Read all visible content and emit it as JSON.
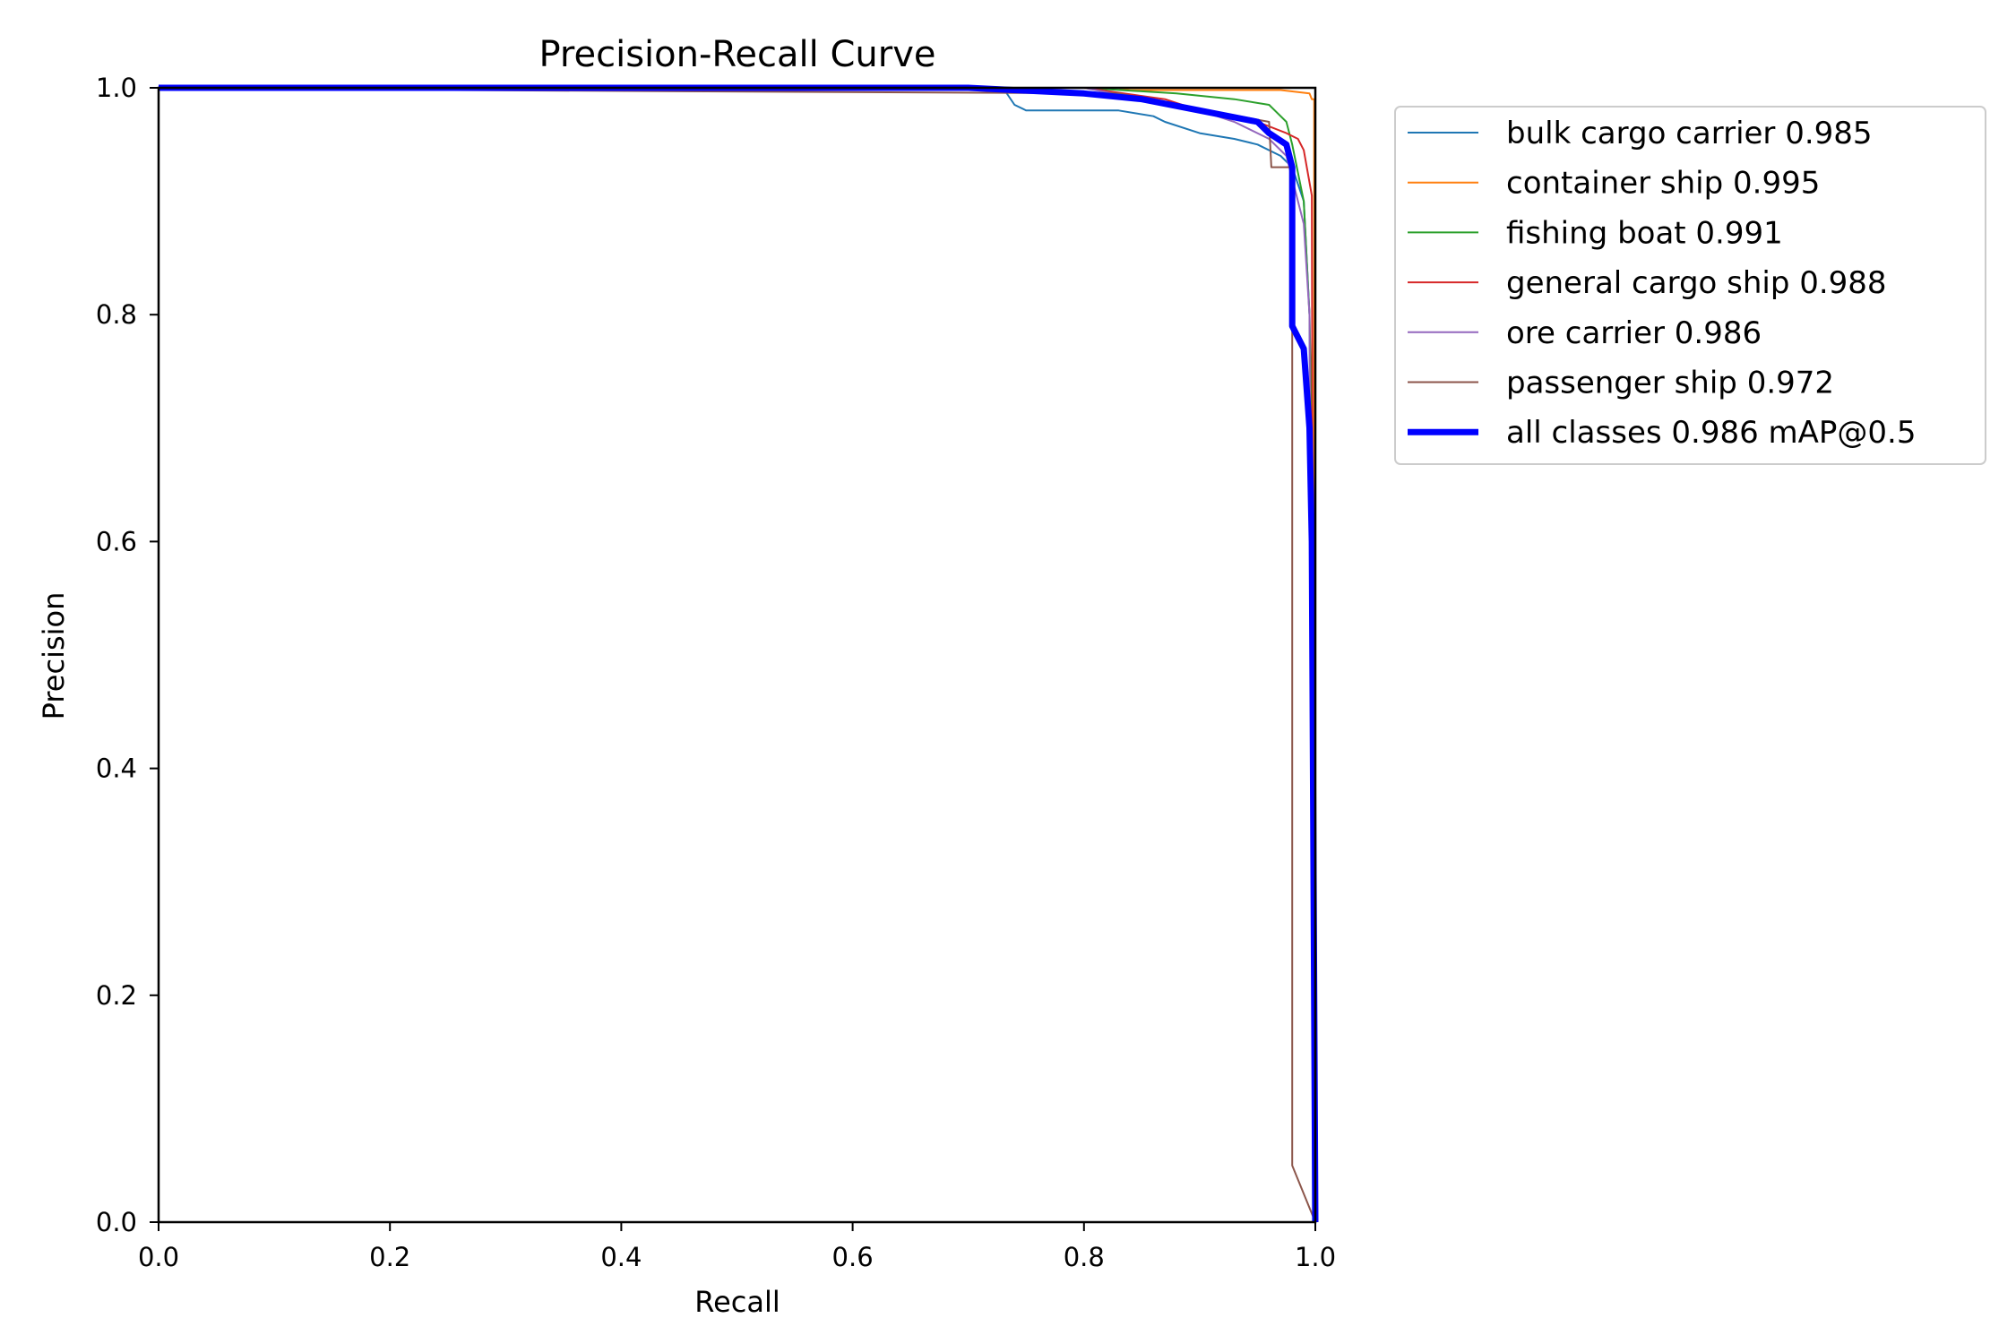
{
  "chart_data": {
    "type": "line",
    "title": "Precision-Recall Curve",
    "xlabel": "Recall",
    "ylabel": "Precision",
    "xlim": [
      0,
      1
    ],
    "ylim": [
      0,
      1
    ],
    "xticks": [
      "0.0",
      "0.2",
      "0.4",
      "0.6",
      "0.8",
      "1.0"
    ],
    "yticks": [
      "0.0",
      "0.2",
      "0.4",
      "0.6",
      "0.8",
      "1.0"
    ],
    "grid": false,
    "legend_position": "outside-top-right",
    "series": [
      {
        "name": "bulk cargo carrier 0.985",
        "color": "#1f77b4",
        "width": 2,
        "x": [
          0,
          0.73,
          0.74,
          0.75,
          0.83,
          0.86,
          0.87,
          0.9,
          0.93,
          0.95,
          0.97,
          0.98,
          0.99,
          0.995,
          1.0
        ],
        "y": [
          1,
          1,
          0.985,
          0.98,
          0.98,
          0.975,
          0.97,
          0.96,
          0.955,
          0.95,
          0.94,
          0.93,
          0.9,
          0.8,
          0.0
        ]
      },
      {
        "name": "container ship 0.995",
        "color": "#ff7f0e",
        "width": 2,
        "x": [
          0,
          0.83,
          0.84,
          0.97,
          0.995,
          0.997,
          0.999,
          0.999
        ],
        "y": [
          1,
          1,
          0.998,
          0.998,
          0.995,
          0.99,
          0.99,
          0.0
        ]
      },
      {
        "name": "fishing boat 0.991",
        "color": "#2ca02c",
        "width": 2,
        "x": [
          0,
          0.8,
          0.88,
          0.93,
          0.96,
          0.975,
          0.98,
          0.99,
          0.995,
          0.997,
          0.998
        ],
        "y": [
          1,
          1,
          0.995,
          0.99,
          0.985,
          0.97,
          0.95,
          0.9,
          0.8,
          0.7,
          0.0
        ]
      },
      {
        "name": "general cargo ship 0.988",
        "color": "#d62728",
        "width": 2,
        "x": [
          0,
          0.8,
          0.87,
          0.9,
          0.95,
          0.975,
          0.985,
          0.99,
          0.997,
          0.999
        ],
        "y": [
          1,
          1,
          0.99,
          0.98,
          0.97,
          0.96,
          0.955,
          0.945,
          0.905,
          0.0
        ]
      },
      {
        "name": "ore carrier 0.986",
        "color": "#9467bd",
        "width": 2,
        "x": [
          0,
          0.8,
          0.85,
          0.9,
          0.93,
          0.96,
          0.975,
          0.99,
          0.995,
          0.999
        ],
        "y": [
          1,
          1,
          0.99,
          0.98,
          0.97,
          0.955,
          0.94,
          0.88,
          0.8,
          0.0
        ]
      },
      {
        "name": "passenger ship 0.972",
        "color": "#8c564b",
        "width": 2,
        "x": [
          0,
          0.25,
          0.83,
          0.96,
          0.962,
          0.98,
          0.98,
          1.0
        ],
        "y": [
          1,
          0.998,
          0.995,
          0.97,
          0.93,
          0.93,
          0.05,
          0.0
        ]
      },
      {
        "name": "all classes 0.986 mAP@0.5",
        "color": "#0000ff",
        "width": 7,
        "x": [
          0,
          0.7,
          0.8,
          0.85,
          0.9,
          0.95,
          0.96,
          0.975,
          0.98,
          0.98,
          0.99,
          0.995,
          0.997,
          1.0
        ],
        "y": [
          1,
          1,
          0.995,
          0.99,
          0.98,
          0.97,
          0.96,
          0.95,
          0.93,
          0.79,
          0.77,
          0.7,
          0.6,
          0.0
        ]
      }
    ]
  }
}
